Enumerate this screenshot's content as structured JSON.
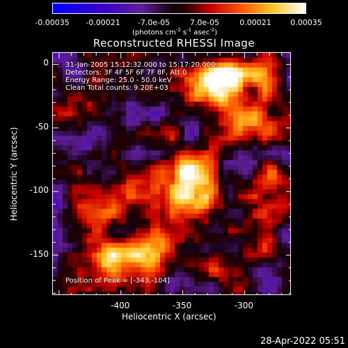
{
  "chart_data": {
    "type": "heatmap",
    "title": "Reconstructed RHESSI Image",
    "xlabel": "Heliocentric X (arcsec)",
    "ylabel": "Heliocentric Y (arcsec)",
    "xlim": [
      -455,
      -262
    ],
    "ylim": [
      -182,
      9
    ],
    "xticks": [
      -400,
      -350,
      -300
    ],
    "yticks": [
      0,
      -50,
      -100,
      -150
    ],
    "colorbar": {
      "ticks": [
        "-0.00035",
        "-0.00021",
        "-7.0e-05",
        "7.0e-05",
        "0.00021",
        "0.00035"
      ],
      "units": "(photons cm",
      "units_exp1": "-2",
      "units_mid1": " s",
      "units_exp2": "-1",
      "units_mid2": " asec",
      "units_exp3": "-2",
      "units_end": ")",
      "range": [
        -0.00035,
        0.00035
      ]
    },
    "annotations": {
      "time_range": "31-Jan-2005 15:12:32.000 to 15:17:20.000",
      "detectors": "Detectors: 3F 4F 5F 6F 7F 8F, Att 0",
      "energy": "Energy Range: 25.0 - 50.0 keV",
      "clean": "Clean    Total counts: 9.20E+03",
      "peak": "Position of Peak = [-343,-104]"
    },
    "peak_position": [
      -343,
      -104
    ],
    "sources": [
      {
        "x": -343,
        "y": -104,
        "intensity": 0.00035
      },
      {
        "x": -350,
        "y": -80,
        "intensity": 0.00028
      },
      {
        "x": -315,
        "y": -10,
        "intensity": 0.00028
      },
      {
        "x": -295,
        "y": -45,
        "intensity": 0.00026
      },
      {
        "x": -330,
        "y": -20,
        "intensity": 0.00022
      },
      {
        "x": -285,
        "y": -8,
        "intensity": 0.0002
      },
      {
        "x": -380,
        "y": -155,
        "intensity": 0.00026
      },
      {
        "x": -410,
        "y": -155,
        "intensity": 0.00022
      },
      {
        "x": -420,
        "y": -120,
        "intensity": 0.00018
      },
      {
        "x": -365,
        "y": -140,
        "intensity": 0.0002
      },
      {
        "x": -330,
        "y": -150,
        "intensity": 0.00014
      },
      {
        "x": -290,
        "y": -125,
        "intensity": 0.00018
      },
      {
        "x": -275,
        "y": -95,
        "intensity": 0.00016
      },
      {
        "x": -445,
        "y": -35,
        "intensity": 0.00016
      },
      {
        "x": -400,
        "y": -95,
        "intensity": 0.00012
      },
      {
        "x": -445,
        "y": -170,
        "intensity": 0.00014
      },
      {
        "x": -300,
        "y": -165,
        "intensity": 0.0001
      },
      {
        "x": -390,
        "y": -60,
        "intensity": 8e-05
      }
    ]
  },
  "timestamp": "28-Apr-2022 05:51"
}
